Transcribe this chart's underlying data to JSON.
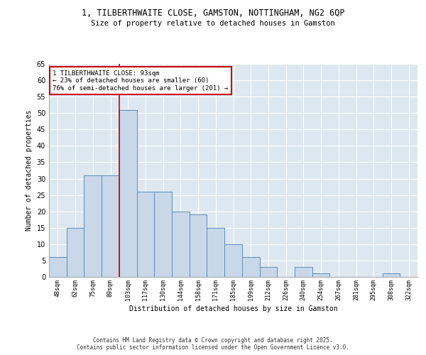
{
  "title_line1": "1, TILBERTHWAITE CLOSE, GAMSTON, NOTTINGHAM, NG2 6QP",
  "title_line2": "Size of property relative to detached houses in Gamston",
  "xlabel": "Distribution of detached houses by size in Gamston",
  "ylabel": "Number of detached properties",
  "bar_labels": [
    "48sqm",
    "62sqm",
    "75sqm",
    "89sqm",
    "103sqm",
    "117sqm",
    "130sqm",
    "144sqm",
    "158sqm",
    "171sqm",
    "185sqm",
    "199sqm",
    "212sqm",
    "226sqm",
    "240sqm",
    "254sqm",
    "267sqm",
    "281sqm",
    "295sqm",
    "308sqm",
    "322sqm"
  ],
  "bar_values": [
    6,
    15,
    31,
    31,
    51,
    26,
    26,
    20,
    19,
    15,
    10,
    6,
    3,
    0,
    3,
    1,
    0,
    0,
    0,
    1,
    0
  ],
  "bar_color": "#c8d8e8",
  "bar_edgecolor": "#5b8db8",
  "background_color": "#dde8f0",
  "grid_color": "#ffffff",
  "vline_x": 3.5,
  "vline_color": "#cc0000",
  "annotation_text": "1 TILBERTHWAITE CLOSE: 93sqm\n← 23% of detached houses are smaller (60)\n76% of semi-detached houses are larger (201) →",
  "annotation_box_edgecolor": "#cc0000",
  "annotation_box_facecolor": "#ffffff",
  "ylim": [
    0,
    65
  ],
  "yticks": [
    0,
    5,
    10,
    15,
    20,
    25,
    30,
    35,
    40,
    45,
    50,
    55,
    60,
    65
  ],
  "footer_line1": "Contains HM Land Registry data © Crown copyright and database right 2025.",
  "footer_line2": "Contains public sector information licensed under the Open Government Licence v3.0."
}
